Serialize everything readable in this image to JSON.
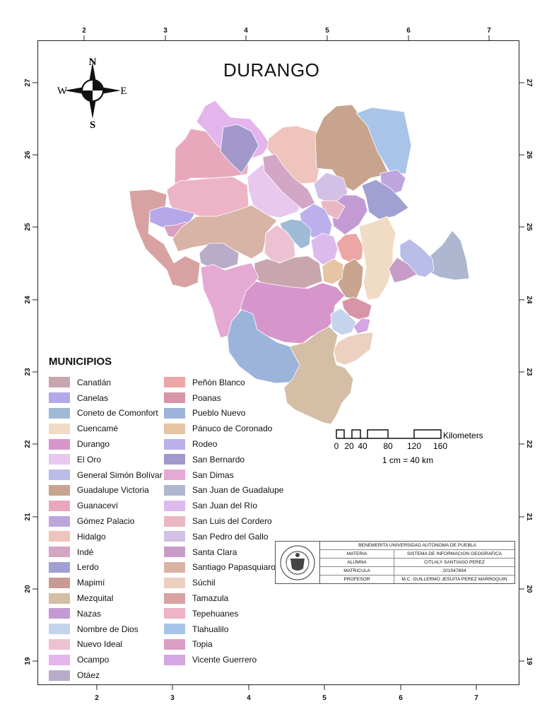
{
  "title": "DURANGO",
  "compass": {
    "n": "N",
    "s": "S",
    "e": "E",
    "w": "W"
  },
  "grid": {
    "top_ticks": [
      "2",
      "3",
      "4",
      "5",
      "6",
      "7"
    ],
    "bottom_ticks": [
      "2",
      "3",
      "4",
      "5",
      "6",
      "7"
    ],
    "left_ticks": [
      "27",
      "26",
      "25",
      "24",
      "23",
      "22",
      "21",
      "20",
      "19"
    ],
    "right_ticks": [
      "27",
      "26",
      "25",
      "24",
      "23",
      "22",
      "21",
      "20",
      "19"
    ]
  },
  "legend": {
    "title": "MUNICIPIOS",
    "column1": [
      {
        "name": "Canatlán",
        "color": "#c9a6ad"
      },
      {
        "name": "Canelas",
        "color": "#b5a8e8"
      },
      {
        "name": "Coneto de Comonfort",
        "color": "#9fbad6"
      },
      {
        "name": "Cuencamé",
        "color": "#f0dcc4"
      },
      {
        "name": "Durango",
        "color": "#d696cc"
      },
      {
        "name": "El Oro",
        "color": "#e8c8ee"
      },
      {
        "name": "General Simón Bolívar",
        "color": "#b9bde8"
      },
      {
        "name": "Guadalupe Victoria",
        "color": "#c8a48e"
      },
      {
        "name": "Guanaceví",
        "color": "#e8a8bc"
      },
      {
        "name": "Gómez Palacio",
        "color": "#bea6dc"
      },
      {
        "name": "Hidalgo",
        "color": "#eec4bc"
      },
      {
        "name": "Indé",
        "color": "#d2a6c4"
      },
      {
        "name": "Lerdo",
        "color": "#a0a0d2"
      },
      {
        "name": "Mapimí",
        "color": "#c89a96"
      },
      {
        "name": "Mezquital",
        "color": "#d4bea6"
      },
      {
        "name": "Nazas",
        "color": "#c49ad4"
      },
      {
        "name": "Nombre de Dios",
        "color": "#c4d4ec"
      },
      {
        "name": "Nuevo Ideal",
        "color": "#ecc2d2"
      },
      {
        "name": "Ocampo",
        "color": "#e4b4ec"
      },
      {
        "name": "Otáez",
        "color": "#b8acc8"
      }
    ],
    "column2": [
      {
        "name": "Peñón Blanco",
        "color": "#eca6a6"
      },
      {
        "name": "Poanas",
        "color": "#d696a8"
      },
      {
        "name": "Pueblo Nuevo",
        "color": "#9cb4da"
      },
      {
        "name": "Pánuco de Coronado",
        "color": "#e6c4a4"
      },
      {
        "name": "Rodeo",
        "color": "#bcb0ec"
      },
      {
        "name": "San Bernardo",
        "color": "#a298cc"
      },
      {
        "name": "San Dimas",
        "color": "#e4aad4"
      },
      {
        "name": "San Juan de Guadalupe",
        "color": "#aeb6d0"
      },
      {
        "name": "San Juan del Río",
        "color": "#dcbaec"
      },
      {
        "name": "San Luis del Cordero",
        "color": "#eab8c2"
      },
      {
        "name": "San Pedro del Gallo",
        "color": "#d2c0e6"
      },
      {
        "name": "Santa Clara",
        "color": "#c89cc8"
      },
      {
        "name": "Santiago Papasquiaro",
        "color": "#d8b4a6"
      },
      {
        "name": "Súchil",
        "color": "#ecd0c0"
      },
      {
        "name": "Tamazula",
        "color": "#d8a2a2"
      },
      {
        "name": "Tepehuanes",
        "color": "#ecb4c6"
      },
      {
        "name": "Tlahualilo",
        "color": "#a8c4e8"
      },
      {
        "name": "Topia",
        "color": "#da9ec2"
      },
      {
        "name": "Vicente Guerrero",
        "color": "#d4a6e2"
      }
    ]
  },
  "scale_bar": {
    "unit": "Kilometers",
    "ticks": [
      "0",
      "20",
      "40",
      "80",
      "120",
      "160"
    ],
    "ratio": "1 cm = 40 km"
  },
  "info_block": {
    "university": "BENEMERITA UNIVERSIDAD AUTONOMA DE PUEBLA",
    "seal_icon": "university-seal-icon",
    "rows": [
      {
        "label": "MATERIA",
        "value": "SISTEMA DE INFORMACION GEOGRAFICA"
      },
      {
        "label": "ALUMNA",
        "value": "CITLALY SANTIAGO PEREZ"
      },
      {
        "label": "MATRICULA",
        "value": "201547694"
      },
      {
        "label": "PROFESOR",
        "value": "M.C. GUILLERMO JESUITA PEREZ MARROQUIN"
      }
    ]
  }
}
